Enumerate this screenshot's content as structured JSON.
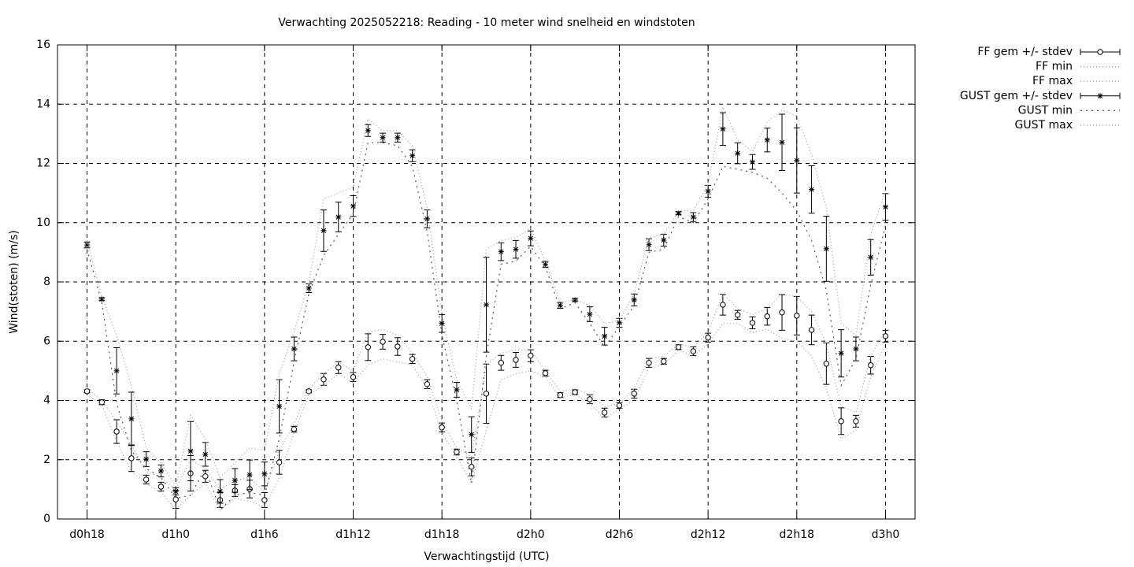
{
  "chart_data": {
    "type": "errorbar",
    "title": "Verwachting 2025052218: Reading - 10 meter wind snelheid en windstoten",
    "x_label": "Verwachtingstijd (UTC)",
    "y_label": "Wind(stoten) (m/s)",
    "xlim": [
      16,
      74
    ],
    "ylim": [
      0,
      16
    ],
    "grid": true,
    "legend": "outside-right",
    "xticks": [
      {
        "value": 18,
        "label": "d0h18"
      },
      {
        "value": 24,
        "label": "d1h0"
      },
      {
        "value": 30,
        "label": "d1h6"
      },
      {
        "value": 36,
        "label": "d1h12"
      },
      {
        "value": 42,
        "label": "d1h18"
      },
      {
        "value": 48,
        "label": "d2h0"
      },
      {
        "value": 54,
        "label": "d2h6"
      },
      {
        "value": 60,
        "label": "d2h12"
      },
      {
        "value": 66,
        "label": "d2h18"
      },
      {
        "value": 72,
        "label": "d3h0"
      }
    ],
    "yticks": [
      0,
      2,
      4,
      6,
      8,
      10,
      12,
      14,
      16
    ],
    "x": [
      18,
      19,
      20,
      21,
      22,
      23,
      24,
      25,
      26,
      27,
      28,
      29,
      30,
      31,
      32,
      33,
      34,
      35,
      36,
      37,
      38,
      39,
      40,
      41,
      42,
      43,
      44,
      45,
      46,
      47,
      48,
      49,
      50,
      51,
      52,
      53,
      54,
      55,
      56,
      57,
      58,
      59,
      60,
      61,
      62,
      63,
      64,
      65,
      66,
      67,
      68,
      69,
      70,
      71,
      72
    ],
    "series": [
      {
        "name": "FF gem +/- stdev",
        "style": "errorbar",
        "marker": "circle",
        "color": "#000000",
        "values": [
          4.31,
          3.94,
          2.95,
          2.05,
          1.33,
          1.09,
          0.66,
          1.54,
          1.44,
          0.64,
          0.96,
          1.01,
          0.64,
          1.91,
          3.03,
          4.31,
          4.71,
          5.11,
          4.79,
          5.8,
          5.98,
          5.82,
          5.4,
          4.55,
          3.09,
          2.26,
          1.76,
          4.23,
          5.27,
          5.37,
          5.51,
          4.92,
          4.18,
          4.28,
          4.04,
          3.59,
          3.83,
          4.23,
          5.27,
          5.32,
          5.8,
          5.66,
          6.12,
          7.23,
          6.89,
          6.62,
          6.84,
          6.97,
          6.86,
          6.38,
          5.24,
          3.3,
          3.3,
          5.19,
          6.17
        ],
        "errors": [
          0.05,
          0.08,
          0.4,
          0.45,
          0.15,
          0.15,
          0.3,
          0.6,
          0.2,
          0.25,
          0.2,
          0.3,
          0.25,
          0.4,
          0.1,
          0.05,
          0.2,
          0.2,
          0.15,
          0.45,
          0.25,
          0.3,
          0.15,
          0.15,
          0.15,
          0.1,
          0.3,
          1.0,
          0.25,
          0.25,
          0.2,
          0.1,
          0.08,
          0.08,
          0.15,
          0.15,
          0.1,
          0.15,
          0.15,
          0.1,
          0.08,
          0.15,
          0.15,
          0.35,
          0.15,
          0.2,
          0.3,
          0.6,
          0.65,
          0.5,
          0.7,
          0.45,
          0.2,
          0.3,
          0.2
        ]
      },
      {
        "name": "FF min",
        "style": "line",
        "dash": "1,3",
        "color": "#9a9a9a",
        "values": [
          4.2,
          3.85,
          2.6,
          1.6,
          1.2,
          0.9,
          0.3,
          0.8,
          1.2,
          0.3,
          0.7,
          0.6,
          0.4,
          1.4,
          2.9,
          4.2,
          4.5,
          4.9,
          4.6,
          5.2,
          5.4,
          5.3,
          5.2,
          4.4,
          2.9,
          2.1,
          1.2,
          3.0,
          4.7,
          4.9,
          5.0,
          4.8,
          4.1,
          4.2,
          3.9,
          3.4,
          3.7,
          4.0,
          5.1,
          5.2,
          5.7,
          5.5,
          5.9,
          6.6,
          6.6,
          6.3,
          6.4,
          6.1,
          6.0,
          5.5,
          4.4,
          2.7,
          3.0,
          4.8,
          5.9
        ]
      },
      {
        "name": "FF max",
        "style": "line",
        "dash": "1,3",
        "color": "#9a9a9a",
        "values": [
          4.4,
          4.0,
          3.3,
          2.5,
          1.6,
          1.4,
          1.0,
          2.0,
          1.7,
          1.0,
          1.3,
          1.4,
          0.9,
          2.3,
          3.2,
          4.4,
          4.9,
          5.3,
          5.0,
          6.3,
          6.4,
          6.2,
          5.6,
          4.8,
          3.3,
          2.4,
          2.1,
          5.2,
          5.6,
          5.7,
          5.7,
          5.0,
          4.3,
          4.4,
          4.2,
          3.8,
          3.9,
          4.4,
          5.4,
          5.5,
          5.9,
          5.8,
          6.3,
          7.6,
          7.1,
          6.9,
          7.1,
          7.6,
          7.5,
          7.0,
          5.9,
          3.8,
          3.6,
          5.5,
          6.4
        ]
      },
      {
        "name": "GUST gem +/- stdev",
        "style": "errorbar",
        "marker": "star",
        "color": "#000000",
        "values": [
          9.25,
          7.42,
          5.0,
          3.38,
          2.02,
          1.62,
          0.93,
          2.29,
          2.18,
          0.93,
          1.3,
          1.49,
          1.52,
          3.8,
          5.74,
          7.79,
          9.73,
          10.19,
          10.56,
          13.11,
          12.87,
          12.87,
          12.26,
          10.13,
          6.6,
          4.36,
          2.85,
          7.23,
          9.02,
          9.1,
          9.47,
          8.59,
          7.21,
          7.39,
          6.91,
          6.17,
          6.62,
          7.39,
          9.26,
          9.41,
          10.32,
          10.19,
          11.06,
          13.16,
          12.34,
          12.05,
          12.79,
          12.71,
          12.1,
          11.12,
          9.12,
          5.59,
          5.74,
          8.83,
          10.53
        ],
        "errors": [
          0.1,
          0.05,
          0.78,
          0.9,
          0.25,
          0.2,
          0.12,
          1.0,
          0.4,
          0.4,
          0.4,
          0.5,
          0.4,
          0.9,
          0.4,
          0.15,
          0.7,
          0.5,
          0.35,
          0.2,
          0.15,
          0.15,
          0.2,
          0.3,
          0.3,
          0.25,
          0.6,
          1.6,
          0.3,
          0.3,
          0.25,
          0.1,
          0.1,
          0.05,
          0.25,
          0.3,
          0.15,
          0.2,
          0.2,
          0.2,
          0.05,
          0.15,
          0.2,
          0.55,
          0.35,
          0.25,
          0.4,
          0.95,
          1.1,
          0.8,
          1.1,
          0.8,
          0.4,
          0.6,
          0.45
        ]
      },
      {
        "name": "GUST min",
        "style": "line",
        "dash": "2,5",
        "color": "#555555",
        "values": [
          9.1,
          7.3,
          3.9,
          2.3,
          1.7,
          1.4,
          0.7,
          0.8,
          1.7,
          0.3,
          0.8,
          0.9,
          0.8,
          2.7,
          5.3,
          7.6,
          8.9,
          9.6,
          10.3,
          12.7,
          12.7,
          12.6,
          11.9,
          9.7,
          6.2,
          4.0,
          1.2,
          5.5,
          8.6,
          8.7,
          9.2,
          8.5,
          7.1,
          7.3,
          6.6,
          5.8,
          6.5,
          7.2,
          9.0,
          9.1,
          10.2,
          10.0,
          10.8,
          11.9,
          11.8,
          11.7,
          11.5,
          11.0,
          10.4,
          9.4,
          7.7,
          4.5,
          5.4,
          7.9,
          9.9
        ]
      },
      {
        "name": "GUST max",
        "style": "line",
        "dash": "1,3",
        "color": "#9a9a9a",
        "values": [
          9.4,
          7.5,
          6.2,
          4.5,
          2.4,
          1.9,
          1.1,
          3.5,
          2.7,
          1.4,
          1.9,
          2.4,
          2.3,
          4.9,
          6.3,
          8.0,
          10.8,
          11.0,
          11.2,
          13.5,
          13.1,
          13.1,
          12.6,
          10.5,
          6.9,
          4.7,
          3.7,
          9.1,
          9.4,
          9.5,
          9.8,
          8.7,
          7.3,
          7.4,
          7.2,
          6.6,
          6.7,
          7.6,
          9.5,
          9.6,
          10.4,
          10.4,
          11.3,
          13.9,
          12.8,
          12.4,
          13.4,
          13.8,
          13.6,
          12.3,
          10.5,
          6.6,
          6.2,
          9.6,
          11.1
        ]
      }
    ]
  }
}
